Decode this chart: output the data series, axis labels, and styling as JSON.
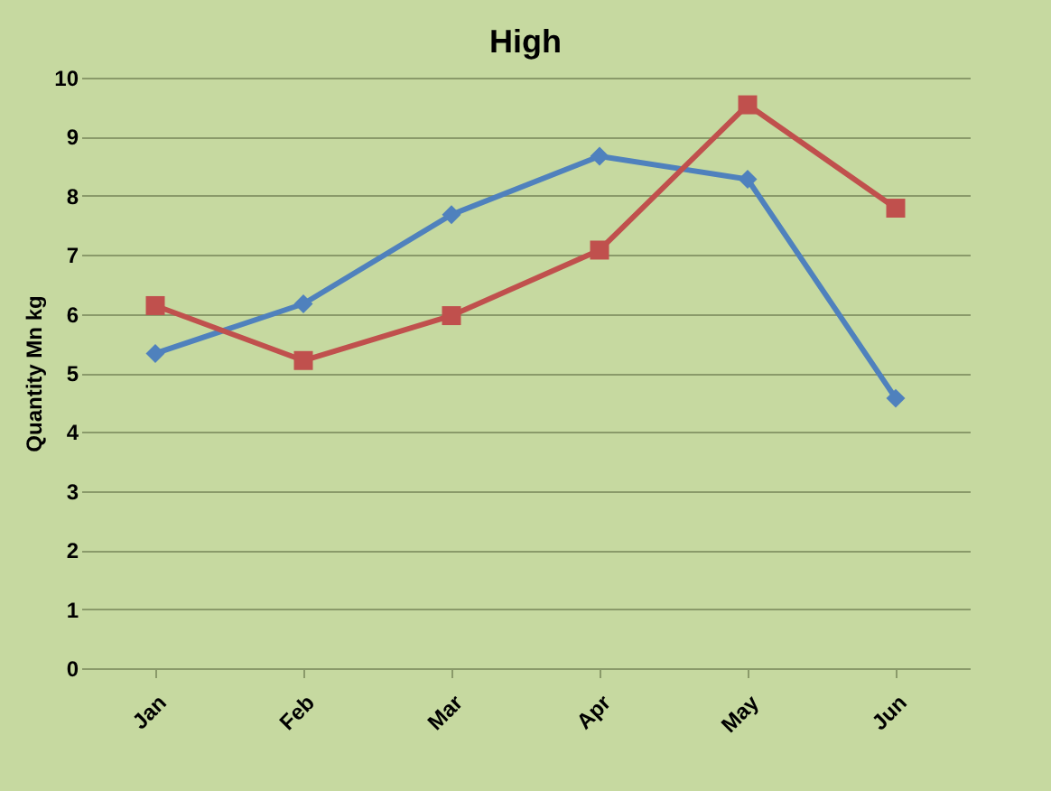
{
  "chart_data": {
    "type": "line",
    "title": "High",
    "ylabel": "Quantity Mn kg",
    "categories": [
      "Jan",
      "Feb",
      "Mar",
      "Apr",
      "May",
      "Jun"
    ],
    "series": [
      {
        "color": "#4f81bd",
        "marker": "diamond",
        "values": [
          5.33,
          6.17,
          7.68,
          8.67,
          8.28,
          4.57
        ]
      },
      {
        "color": "#c0504d",
        "marker": "square",
        "values": [
          6.14,
          5.21,
          5.97,
          7.08,
          9.54,
          7.79
        ]
      }
    ],
    "ylim": [
      0,
      10
    ],
    "yticks": [
      0,
      1,
      2,
      3,
      4,
      5,
      6,
      7,
      8,
      9,
      10
    ],
    "grid": "y"
  }
}
